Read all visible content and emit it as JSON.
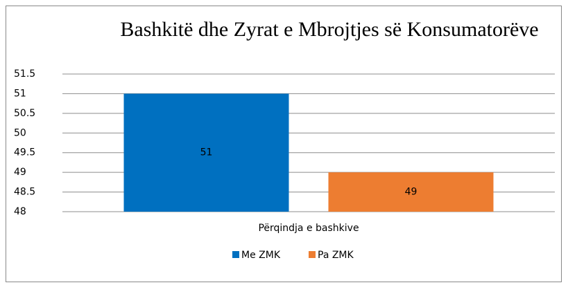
{
  "chart_data": {
    "type": "bar",
    "title": "Bashkitë dhe Zyrat e Mbrojtjes së Konsumatorëve",
    "categories": [
      "Përqindja e bashkive"
    ],
    "series": [
      {
        "name": "Me ZMK",
        "color": "#0070c0",
        "values": [
          51
        ]
      },
      {
        "name": "Pa ZMK",
        "color": "#ed7d31",
        "values": [
          49
        ]
      }
    ],
    "ylim": [
      48,
      51.5
    ],
    "yticks": [
      48,
      48.5,
      49,
      49.5,
      50,
      50.5,
      51,
      51.5
    ],
    "grid": true,
    "legend": "bottom"
  }
}
